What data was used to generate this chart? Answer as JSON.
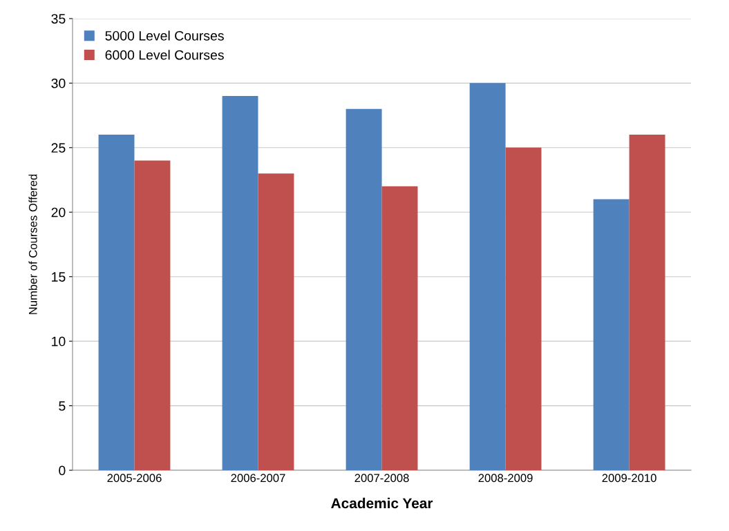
{
  "chart_data": {
    "type": "bar",
    "xlabel": "Academic Year",
    "ylabel": "Number of Courses Offered",
    "categories": [
      "2005-2006",
      "2006-2007",
      "2007-2008",
      "2008-2009",
      "2009-2010"
    ],
    "series": [
      {
        "name": "5000 Level Courses",
        "color": "#4f81bd",
        "values": [
          26,
          29,
          28,
          30,
          21
        ]
      },
      {
        "name": "6000 Level Courses",
        "color": "#c0504d",
        "values": [
          24,
          23,
          22,
          25,
          26
        ]
      }
    ],
    "ylim": [
      0,
      35
    ],
    "yticks": [
      0,
      5,
      10,
      15,
      20,
      25,
      30,
      35
    ],
    "grid": "y",
    "legend": "top left"
  }
}
